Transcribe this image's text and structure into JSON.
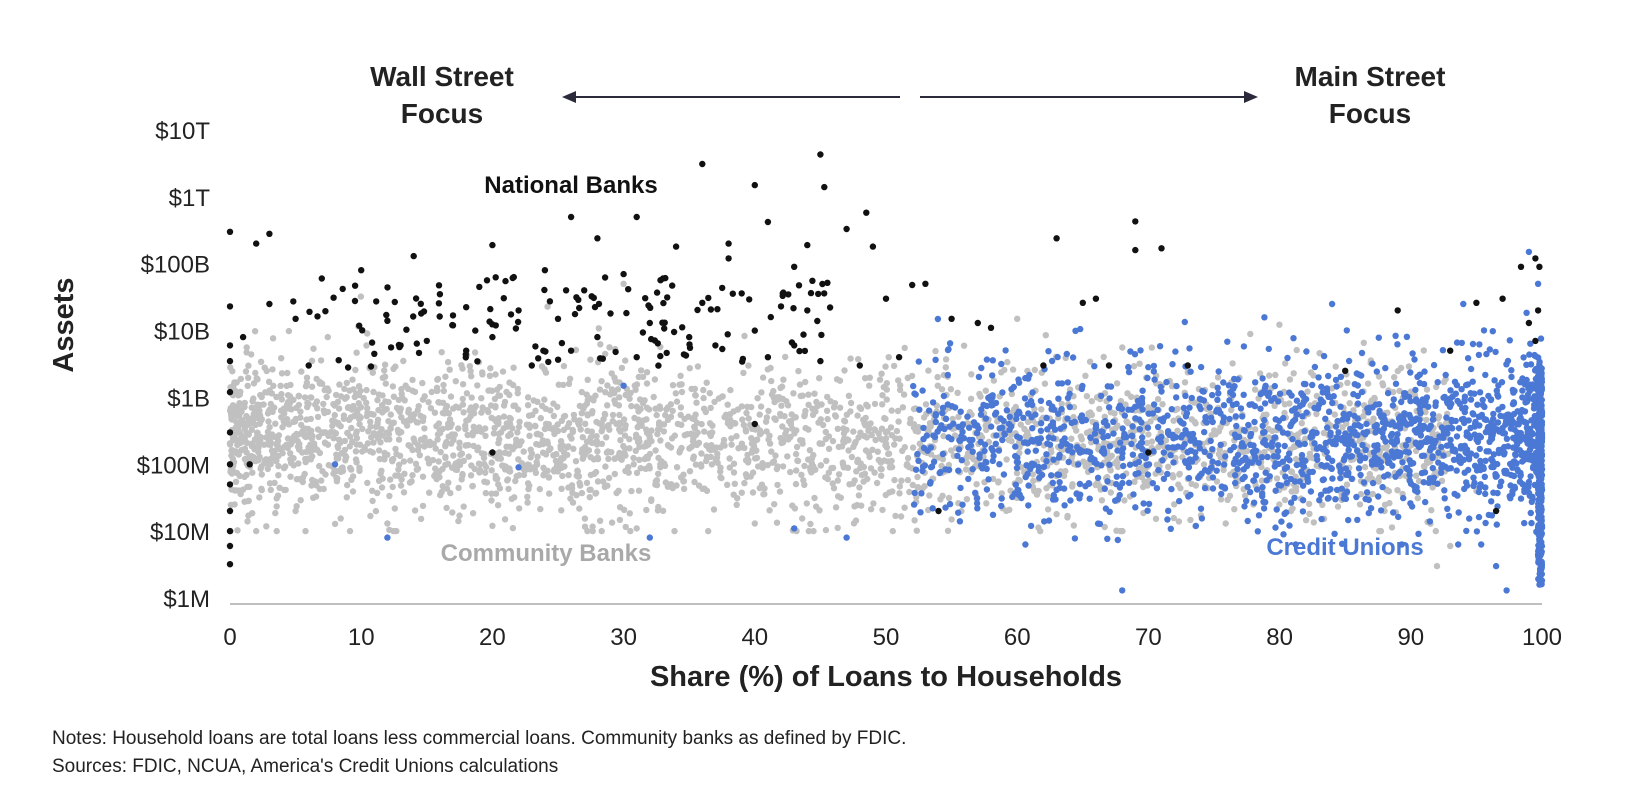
{
  "chart_data": {
    "type": "scatter",
    "title": "",
    "xlabel": "Share (%) of Loans to Households",
    "ylabel": "Assets",
    "xlim": [
      0,
      100
    ],
    "x_ticks": [
      0,
      10,
      20,
      30,
      40,
      50,
      60,
      70,
      80,
      90,
      100
    ],
    "y_scale": "log",
    "ylim": [
      "$1M",
      "$10T"
    ],
    "y_ticks": [
      {
        "label": "$1M",
        "value": 1000000
      },
      {
        "label": "$10M",
        "value": 10000000
      },
      {
        "label": "$100M",
        "value": 100000000
      },
      {
        "label": "$1B",
        "value": 1000000000
      },
      {
        "label": "$10B",
        "value": 10000000000
      },
      {
        "label": "$100B",
        "value": 100000000000
      },
      {
        "label": "$1T",
        "value": 1000000000000
      },
      {
        "label": "$10T",
        "value": 10000000000000
      }
    ],
    "grid": false,
    "annotations": {
      "wall_street_line1": "Wall Street",
      "wall_street_line2": "Focus",
      "main_street_line1": "Main Street",
      "main_street_line2": "Focus"
    },
    "series": [
      {
        "name": "National Banks",
        "color": "#111111",
        "points": [
          [
            0,
            300000000000.0
          ],
          [
            2,
            200000000000.0
          ],
          [
            3,
            280000000000.0
          ],
          [
            20,
            190000000000.0
          ],
          [
            26,
            500000000000.0
          ],
          [
            28,
            240000000000.0
          ],
          [
            31,
            500000000000.0
          ],
          [
            36,
            3100000000000.0
          ],
          [
            38,
            200000000000.0
          ],
          [
            40,
            1500000000000.0
          ],
          [
            41,
            420000000000.0
          ],
          [
            43,
            90000000000.0
          ],
          [
            44,
            190000000000.0
          ],
          [
            45,
            4300000000000.0
          ],
          [
            45.3,
            1400000000000.0
          ],
          [
            47,
            330000000000.0
          ],
          [
            48.5,
            580000000000.0
          ],
          [
            49,
            180000000000.0
          ],
          [
            52,
            48000000000.0
          ],
          [
            63,
            240000000000.0
          ],
          [
            69,
            430000000000.0
          ],
          [
            69,
            160000000000.0
          ],
          [
            71,
            170000000000.0
          ],
          [
            98.4,
            90000000000.0
          ],
          [
            99.5,
            120000000000.0
          ],
          [
            99.8,
            90000000000.0
          ],
          [
            0,
            23000000000.0
          ],
          [
            0,
            6000000000.0
          ],
          [
            0,
            3500000000.0
          ],
          [
            0,
            1200000000.0
          ],
          [
            0,
            300000000.0
          ],
          [
            0,
            100000000.0
          ],
          [
            0,
            50000000.0
          ],
          [
            0,
            20000000.0
          ],
          [
            0,
            10000000.0
          ],
          [
            0,
            6000000.0
          ],
          [
            0,
            3200000.0
          ],
          [
            1,
            8000000000.0
          ],
          [
            1.5,
            100000000.0
          ],
          [
            3,
            25000000000.0
          ],
          [
            5,
            15000000000.0
          ],
          [
            6,
            3000000000.0
          ],
          [
            7,
            60000000000.0
          ],
          [
            9,
            2800000000.0
          ],
          [
            10,
            80000000000.0
          ],
          [
            11,
            4500000000.0
          ],
          [
            12,
            14000000000.0
          ],
          [
            13,
            6000000000.0
          ],
          [
            14,
            130000000000.0
          ],
          [
            15,
            7000000000.0
          ],
          [
            16,
            35000000000.0
          ],
          [
            17,
            12000000000.0
          ],
          [
            18,
            5000000000.0
          ],
          [
            19,
            45000000000.0
          ],
          [
            20,
            8000000000.0
          ],
          [
            21,
            55000000000.0
          ],
          [
            22,
            20000000000.0
          ],
          [
            23,
            3000000000.0
          ],
          [
            24,
            80000000000.0
          ],
          [
            25,
            15000000000.0
          ],
          [
            26,
            5000000000.0
          ],
          [
            27,
            40000000000.0
          ],
          [
            28,
            8000000000.0
          ],
          [
            29,
            18000000000.0
          ],
          [
            30,
            70000000000.0
          ],
          [
            31,
            4000000000.0
          ],
          [
            32,
            13000000000.0
          ],
          [
            33,
            60000000000.0
          ],
          [
            34,
            180000000000.0
          ],
          [
            35,
            8000000000.0
          ],
          [
            36,
            26000000000.0
          ],
          [
            37,
            6000000000.0
          ],
          [
            38,
            120000000000.0
          ],
          [
            39,
            36000000000.0
          ],
          [
            40,
            10000000000.0
          ],
          [
            41,
            4000000000.0
          ],
          [
            42,
            23000000000.0
          ],
          [
            43,
            6000000000.0
          ],
          [
            44,
            20000000000.0
          ],
          [
            45,
            3500000000.0
          ],
          [
            48,
            3000000000.0
          ],
          [
            50,
            30000000000.0
          ],
          [
            51,
            4000000000.0
          ],
          [
            53,
            50000000000.0
          ],
          [
            55,
            15000000000.0
          ],
          [
            57,
            13000000000.0
          ],
          [
            58,
            11000000000.0
          ],
          [
            62,
            3000000000.0
          ],
          [
            65,
            26000000000.0
          ],
          [
            66,
            30000000000.0
          ],
          [
            67,
            3000000000.0
          ],
          [
            73,
            3000000000.0
          ],
          [
            85,
            2500000000.0
          ],
          [
            89,
            20000000000.0
          ],
          [
            93,
            5000000000.0
          ],
          [
            95,
            26000000000.0
          ],
          [
            97,
            30000000000.0
          ],
          [
            99,
            13000000000.0
          ],
          [
            99.5,
            7000000000.0
          ],
          [
            99.7,
            20000000000.0
          ],
          [
            20,
            150000000.0
          ],
          [
            40,
            400000000.0
          ],
          [
            54,
            20000000.0
          ],
          [
            70,
            150000000.0
          ],
          [
            96.5,
            20000000.0
          ]
        ],
        "auto_cluster": {
          "count": 130,
          "x_range": [
            0,
            50
          ],
          "y_range": [
            1000000000.0,
            100000000000.0
          ]
        }
      },
      {
        "name": "Community Banks",
        "color": "#c0c0c0",
        "points": [
          [
            2,
            10000000.0
          ],
          [
            5,
            20000000.0
          ],
          [
            12,
            13000000.0
          ],
          [
            20,
            12000000.0
          ],
          [
            31,
            11000000.0
          ],
          [
            40,
            13000000.0
          ],
          [
            55,
            15000000.0
          ],
          [
            63,
            18000000.0
          ],
          [
            78,
            25000000.0
          ],
          [
            92,
            3000000.0
          ],
          [
            93,
            6000000.0
          ],
          [
            88,
            20000000.0
          ],
          [
            95,
            40000000.0
          ],
          [
            60,
            15000000000.0
          ],
          [
            30,
            50000000000.0
          ]
        ],
        "auto_cluster": {
          "count": 2900,
          "x_range": [
            0,
            93
          ],
          "y_range": [
            10000000.0,
            50000000000.0
          ],
          "peak": [
            100000000.0,
            3000000000.0
          ]
        }
      },
      {
        "name": "Credit Unions",
        "color": "#4a78d4",
        "points": [
          [
            12,
            8000000.0
          ],
          [
            47,
            8000000.0
          ],
          [
            43,
            11000000.0
          ],
          [
            68,
            1300000.0
          ],
          [
            97.3,
            1300000.0
          ],
          [
            96.5,
            3000000.0
          ],
          [
            99,
            150000000000.0
          ],
          [
            99.7,
            50000000000.0
          ],
          [
            94,
            25000000000.0
          ],
          [
            84,
            25000000000.0
          ],
          [
            32,
            8000000.0
          ],
          [
            22,
            90000000.0
          ],
          [
            8,
            100000000.0
          ],
          [
            30,
            1500000000.0
          ]
        ],
        "auto_cluster": {
          "count": 1650,
          "x_range": [
            52,
            100
          ],
          "y_range": [
            10000000.0,
            30000000000.0
          ],
          "peak": [
            100000000.0,
            1000000000.0
          ],
          "vertical_band_at_x": 100
        }
      }
    ],
    "legend": "labels placed inside plot area",
    "series_labels": [
      "National Banks",
      "Community Banks",
      "Credit Unions"
    ]
  },
  "notes": {
    "line1": "Notes: Household loans are total loans less commercial loans. Community banks as defined by FDIC.",
    "line2": "Sources: FDIC, NCUA, America's Credit Unions calculations"
  }
}
